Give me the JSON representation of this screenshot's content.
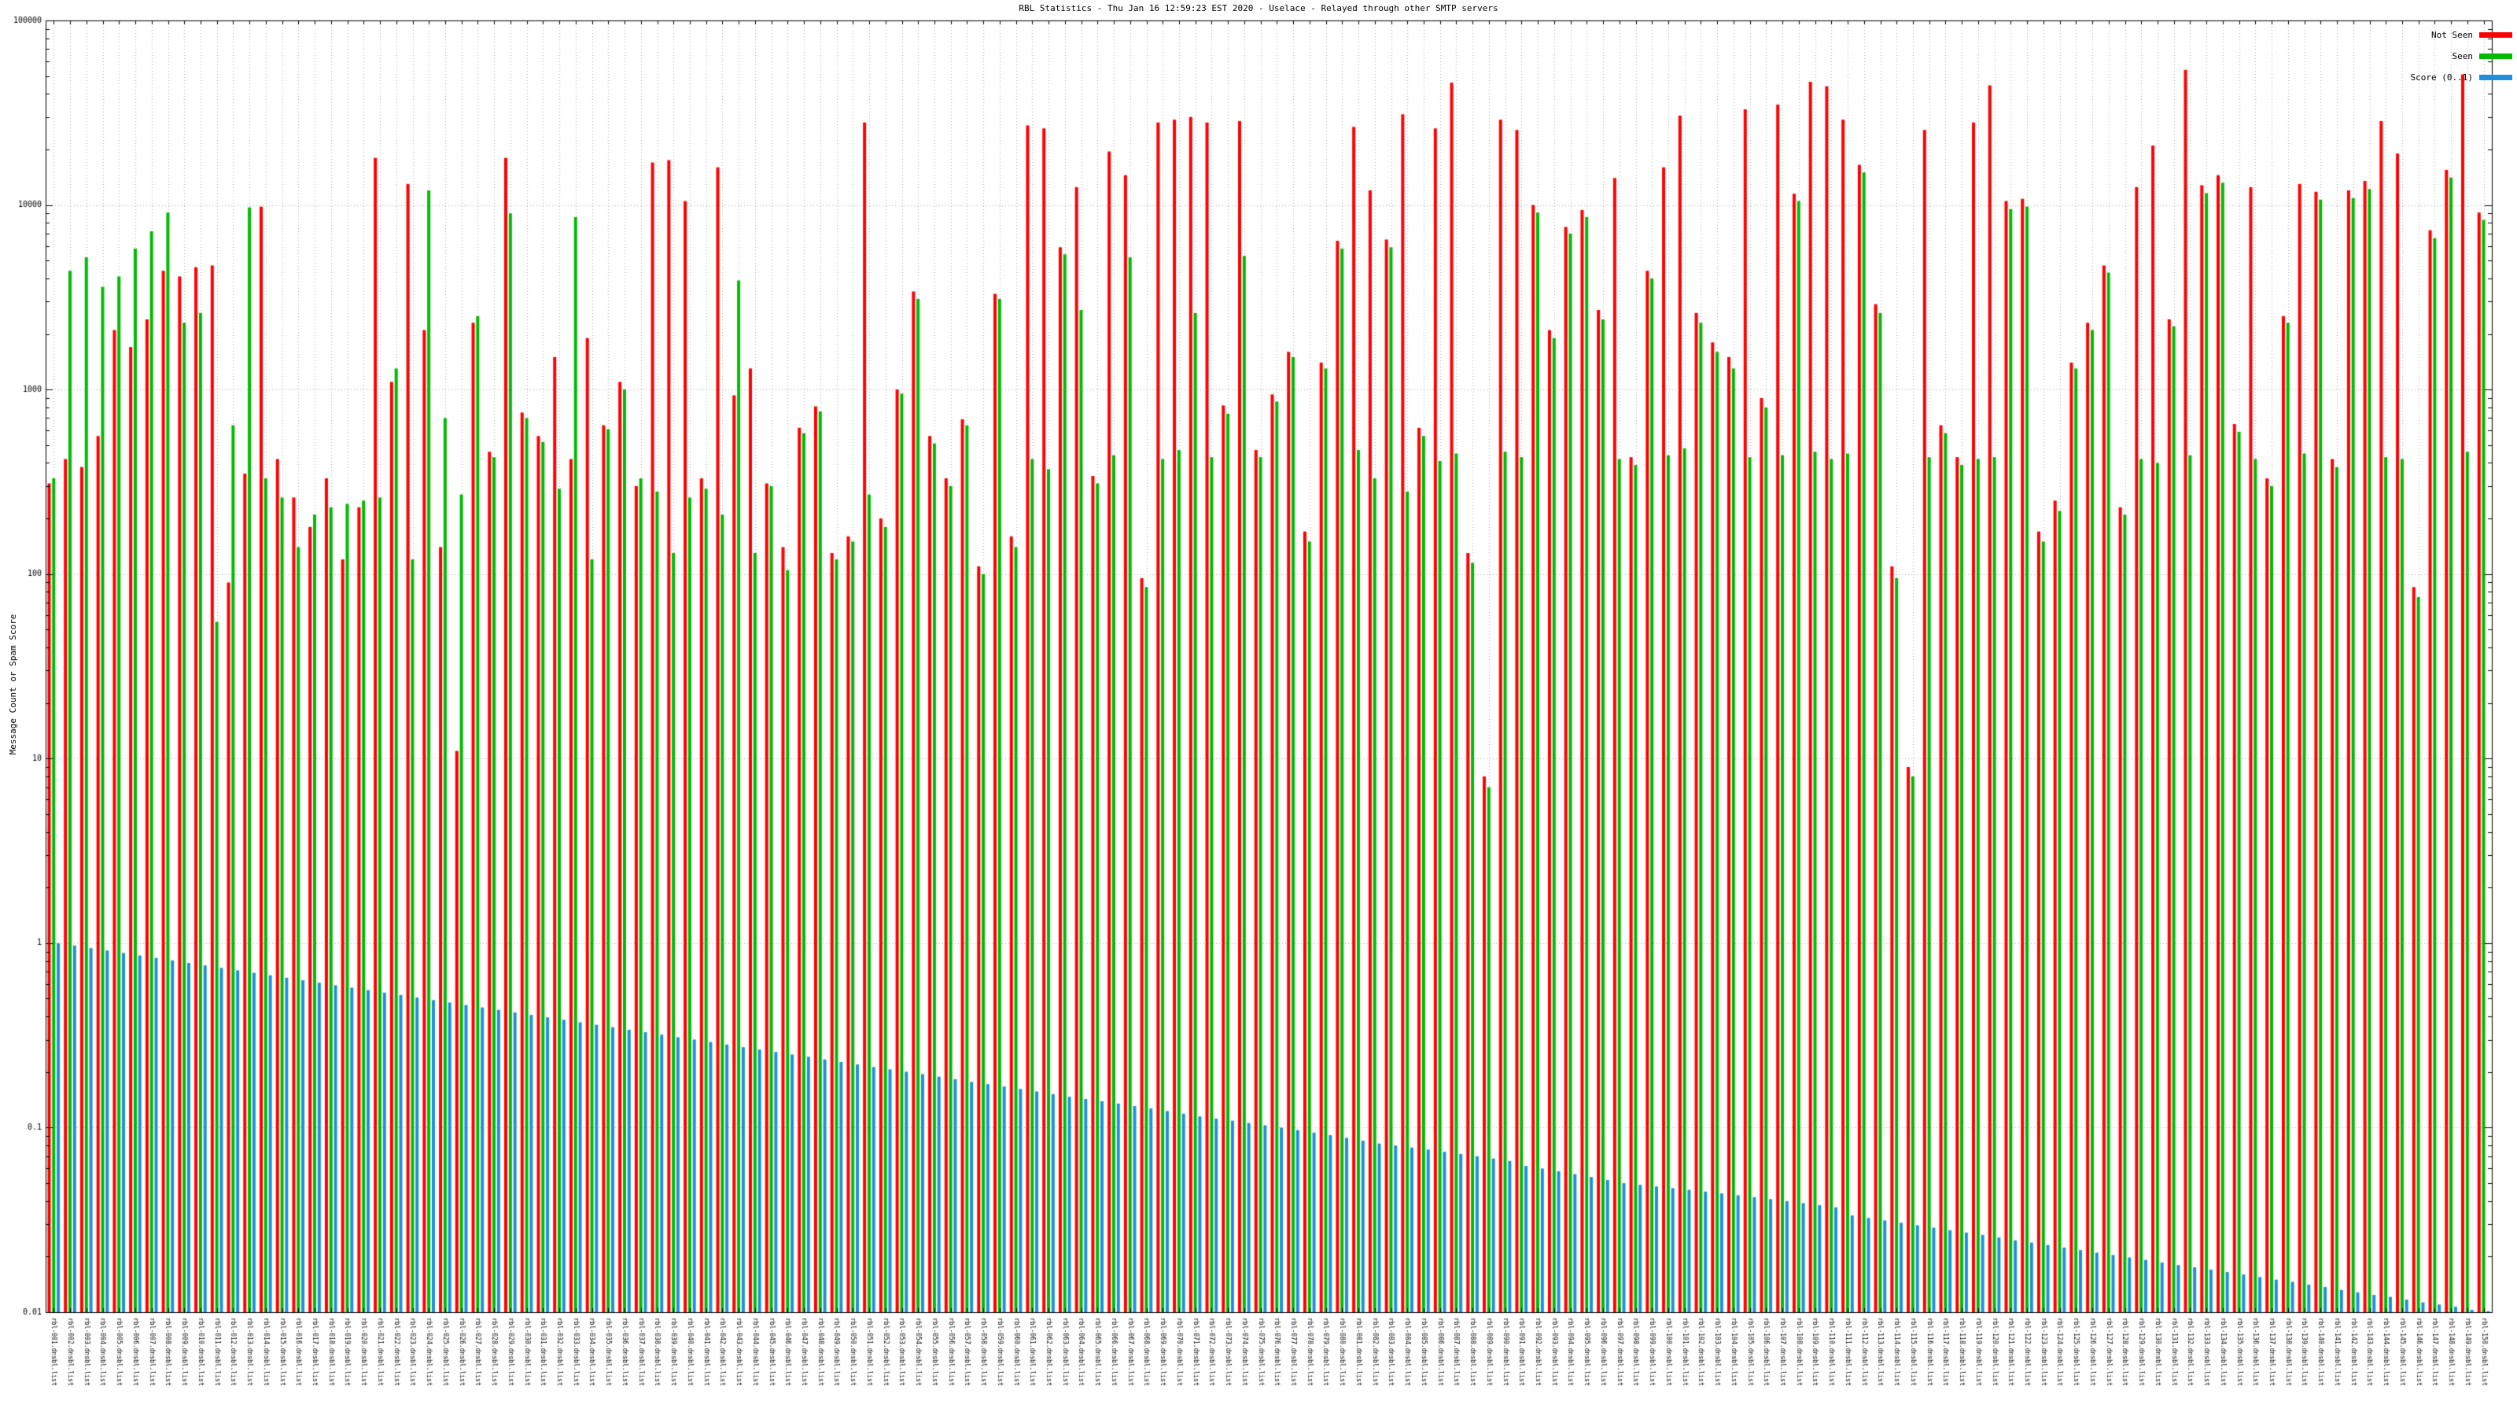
{
  "header": {
    "title": "RBL Statistics - Thu Jan 16 12:59:23 EST 2020 - Uselace - Relayed through other SMTP servers"
  },
  "axes": {
    "ylabel": "Message Count or Spam Score",
    "y_ticks": [
      "100000",
      "10000",
      "1000",
      "100",
      "10",
      "1",
      "0.1",
      "0.01"
    ],
    "x_tick_labels_note": "rotated RBL hostnames along the x-axis, illegible at capture resolution"
  },
  "legend": {
    "items": [
      {
        "label": "Not Seen",
        "color": "#ff0000"
      },
      {
        "label": "Seen",
        "color": "#00bb00"
      },
      {
        "label": "Score (0..1)",
        "color": "#1e8fdd"
      }
    ]
  },
  "chart_data": {
    "type": "bar",
    "scale": "log",
    "title": "RBL Statistics - Thu Jan 16 12:59:23 EST 2020 - Uselace - Relayed through other SMTP servers",
    "xlabel": "",
    "ylabel": "Message Count or Spam Score",
    "ylim": [
      0.01,
      100000
    ],
    "grid": true,
    "legend_position": "top-right",
    "x_tick_labels": "rotated RBL hostnames (illegible at capture resolution); categories below are positional placeholders",
    "n_groups": 150,
    "series": [
      {
        "name": "Not Seen",
        "color": "#ff0000",
        "values": [
          310,
          420,
          380,
          560,
          2100,
          1700,
          2400,
          4400,
          4100,
          4600,
          4700,
          90,
          350,
          9800,
          420,
          260,
          180,
          330,
          120,
          230,
          18000,
          1100,
          13000,
          2100,
          140,
          11,
          2300,
          460,
          18000,
          750,
          560,
          1500,
          420,
          1900,
          640,
          1100,
          300,
          17000,
          17500,
          10500,
          330,
          16000,
          930,
          1300,
          310,
          140,
          620,
          810,
          130,
          160,
          28000,
          200,
          1000,
          3400,
          560,
          330,
          690,
          110,
          3300,
          160,
          27000,
          26000,
          5900,
          12500,
          340,
          19500,
          14500,
          95,
          28000,
          29000,
          30000,
          28000,
          820,
          28500,
          470,
          940,
          1600,
          170,
          1400,
          6400,
          26500,
          12000,
          6500,
          31000,
          620,
          26000,
          46000,
          130,
          8,
          29000,
          25500,
          10000,
          2100,
          7600,
          9400,
          2700,
          14000,
          430,
          4400,
          16000,
          30500,
          2600,
          1800,
          1500,
          33000,
          900,
          35000,
          11500,
          46500,
          44000,
          29000,
          16500,
          2900,
          110,
          9,
          25500,
          640,
          430,
          28000,
          44500,
          10500,
          10800,
          170,
          250,
          1400,
          2300,
          4700,
          230,
          12500,
          21000,
          2400,
          54000,
          12800,
          14500,
          650,
          12500,
          330,
          2500,
          13000,
          11800,
          420,
          12000,
          13500,
          28500,
          19000,
          85,
          7300,
          15500,
          51000,
          9100
        ]
      },
      {
        "name": "Seen",
        "color": "#00bb00",
        "values": [
          330,
          4400,
          5200,
          3600,
          4100,
          5800,
          7200,
          9100,
          2300,
          2600,
          55,
          640,
          9700,
          330,
          260,
          140,
          210,
          230,
          240,
          250,
          260,
          1300,
          120,
          12000,
          700,
          270,
          2500,
          430,
          9000,
          700,
          520,
          290,
          8600,
          120,
          610,
          1000,
          330,
          280,
          130,
          260,
          290,
          210,
          3900,
          130,
          300,
          105,
          580,
          760,
          120,
          150,
          270,
          180,
          950,
          3100,
          510,
          300,
          640,
          100,
          3100,
          140,
          420,
          370,
          5400,
          2700,
          310,
          440,
          5200,
          85,
          420,
          470,
          2600,
          430,
          740,
          5300,
          430,
          860,
          1500,
          150,
          1300,
          5800,
          470,
          330,
          5900,
          280,
          560,
          410,
          450,
          115,
          7,
          460,
          430,
          9100,
          1900,
          7000,
          8600,
          2400,
          420,
          390,
          4000,
          440,
          480,
          2300,
          1600,
          1300,
          430,
          800,
          440,
          10500,
          460,
          420,
          450,
          15000,
          2600,
          95,
          8,
          430,
          580,
          390,
          420,
          430,
          9500,
          9800,
          150,
          220,
          1300,
          2100,
          4300,
          210,
          420,
          400,
          2200,
          440,
          11600,
          13200,
          590,
          420,
          300,
          2300,
          450,
          10700,
          380,
          10900,
          12200,
          430,
          420,
          75,
          6600,
          14100,
          460,
          8300
        ]
      },
      {
        "name": "Score (0..1)",
        "color": "#1e8fdd",
        "values": [
          1.0,
          0.97,
          0.94,
          0.912,
          0.884,
          0.857,
          0.831,
          0.806,
          0.781,
          0.757,
          0.734,
          0.712,
          0.69,
          0.669,
          0.649,
          0.629,
          0.61,
          0.591,
          0.573,
          0.556,
          0.539,
          0.523,
          0.507,
          0.491,
          0.476,
          0.462,
          0.448,
          0.434,
          0.421,
          0.408,
          0.396,
          0.384,
          0.372,
          0.361,
          0.35,
          0.339,
          0.329,
          0.319,
          0.309,
          0.3,
          0.291,
          0.282,
          0.273,
          0.265,
          0.257,
          0.249,
          0.242,
          0.234,
          0.227,
          0.22,
          0.213,
          0.207,
          0.201,
          0.195,
          0.189,
          0.183,
          0.177,
          0.172,
          0.167,
          0.162,
          0.157,
          0.152,
          0.147,
          0.143,
          0.139,
          0.135,
          0.131,
          0.127,
          0.123,
          0.119,
          0.115,
          0.112,
          0.109,
          0.106,
          0.103,
          0.1,
          0.097,
          0.094,
          0.091,
          0.088,
          0.085,
          0.082,
          0.08,
          0.078,
          0.076,
          0.074,
          0.072,
          0.07,
          0.068,
          0.066,
          0.062,
          0.06,
          0.058,
          0.056,
          0.054,
          0.052,
          0.05,
          0.049,
          0.048,
          0.047,
          0.046,
          0.045,
          0.044,
          0.043,
          0.042,
          0.041,
          0.04,
          0.039,
          0.038,
          0.037,
          0.0334,
          0.0324,
          0.0314,
          0.0305,
          0.0296,
          0.0287,
          0.0278,
          0.027,
          0.0262,
          0.0254,
          0.0245,
          0.0238,
          0.0231,
          0.0224,
          0.0217,
          0.021,
          0.0204,
          0.0198,
          0.0192,
          0.0186,
          0.018,
          0.0175,
          0.017,
          0.0165,
          0.016,
          0.0155,
          0.015,
          0.0146,
          0.0141,
          0.0137,
          0.0132,
          0.0128,
          0.0124,
          0.0121,
          0.0117,
          0.0113,
          0.011,
          0.0107,
          0.0103,
          0.01
        ]
      }
    ]
  }
}
